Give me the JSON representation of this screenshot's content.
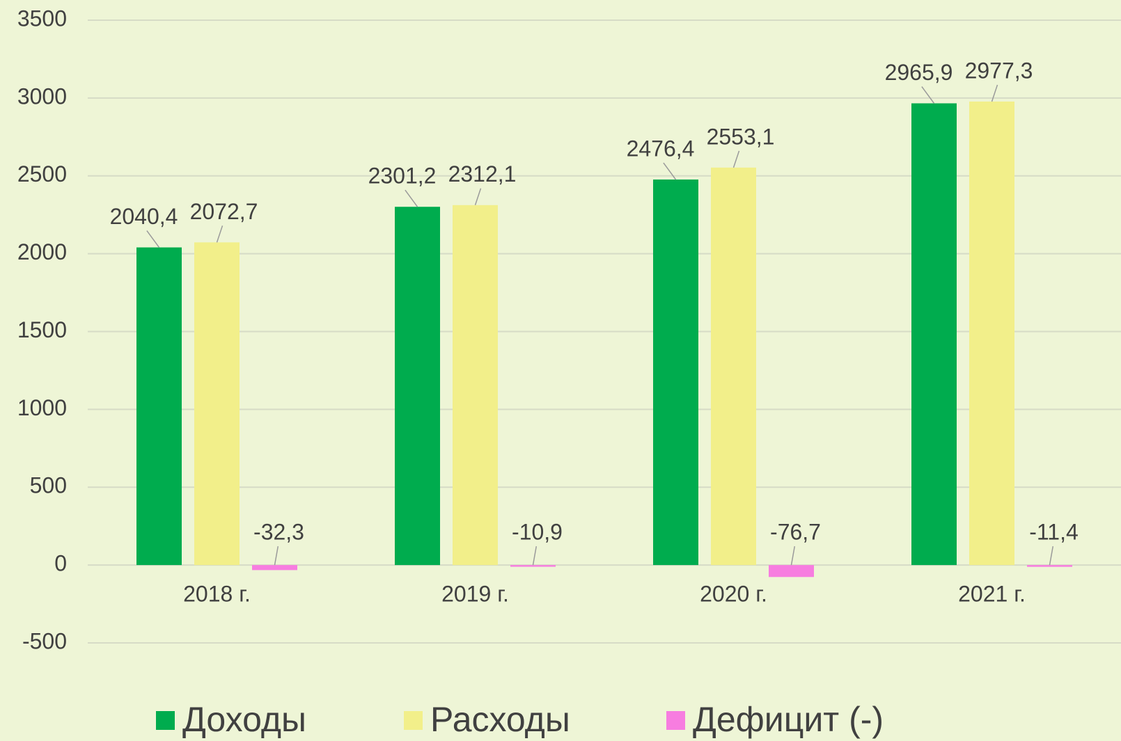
{
  "chart_data": {
    "type": "bar",
    "categories": [
      "2018 г.",
      "2019 г.",
      "2020 г.",
      "2021 г."
    ],
    "series": [
      {
        "name": "Доходы",
        "color": "#00ac4e",
        "values": [
          2040.4,
          2301.2,
          2476.4,
          2965.9
        ],
        "value_labels": [
          "2040,4",
          "2301,2",
          "2476,4",
          "2965,9"
        ]
      },
      {
        "name": "Расходы",
        "color": "#f2ef8a",
        "values": [
          2072.7,
          2312.1,
          2553.1,
          2977.3
        ],
        "value_labels": [
          "2072,7",
          "2312,1",
          "2553,1",
          "2977,3"
        ]
      },
      {
        "name": "Дефицит (-)",
        "color": "#f77de0",
        "values": [
          -32.3,
          -10.9,
          -76.7,
          -11.4
        ],
        "value_labels": [
          "-32,3",
          "-10,9",
          "-76,7",
          "-11,4"
        ]
      }
    ],
    "ylim": [
      -500,
      3500
    ],
    "yticks": [
      -500,
      0,
      500,
      1000,
      1500,
      2000,
      2500,
      3000,
      3500
    ],
    "grid": true,
    "legend": "bottom"
  }
}
